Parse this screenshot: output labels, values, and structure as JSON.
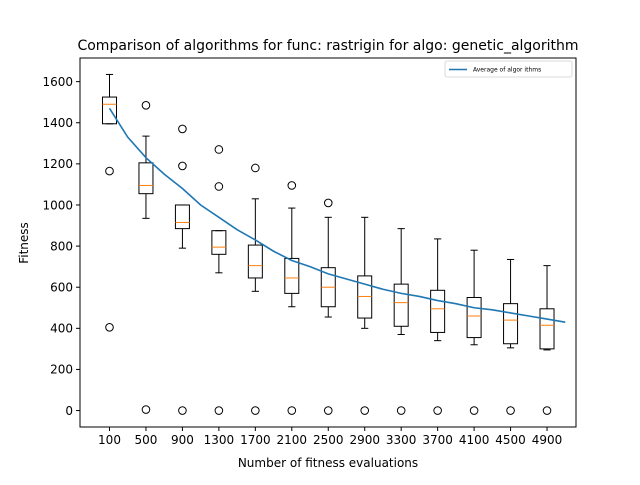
{
  "chart_data": {
    "type": "box",
    "title": "Comparison of algorithms for func: rastrigin for algo: genetic_algorithm",
    "xlabel": "Number of fitness evaluations",
    "ylabel": "Fitness",
    "ylim": [
      -80,
      1715
    ],
    "yticks": [
      0,
      200,
      400,
      600,
      800,
      1000,
      1200,
      1400,
      1600
    ],
    "grid": false,
    "legend_position": "top-right",
    "categories": [
      "100",
      "500",
      "900",
      "1300",
      "1700",
      "2100",
      "2500",
      "2900",
      "3300",
      "3700",
      "4100",
      "4500",
      "4900"
    ],
    "boxes": [
      {
        "whisker_low": 1395,
        "q1": 1395,
        "median": 1490,
        "q3": 1525,
        "whisker_high": 1635,
        "fliers": [
          1165,
          405
        ]
      },
      {
        "whisker_low": 935,
        "q1": 1055,
        "median": 1095,
        "q3": 1205,
        "whisker_high": 1335,
        "fliers": [
          1485,
          5
        ]
      },
      {
        "whisker_low": 790,
        "q1": 885,
        "median": 915,
        "q3": 1000,
        "whisker_high": 1000,
        "fliers": [
          1370,
          1190,
          0
        ]
      },
      {
        "whisker_low": 670,
        "q1": 760,
        "median": 795,
        "q3": 875,
        "whisker_high": 875,
        "fliers": [
          1270,
          1090,
          0
        ]
      },
      {
        "whisker_low": 580,
        "q1": 645,
        "median": 705,
        "q3": 805,
        "whisker_high": 1030,
        "fliers": [
          1180,
          0
        ]
      },
      {
        "whisker_low": 505,
        "q1": 570,
        "median": 645,
        "q3": 740,
        "whisker_high": 985,
        "fliers": [
          1095,
          0
        ]
      },
      {
        "whisker_low": 455,
        "q1": 505,
        "median": 600,
        "q3": 695,
        "whisker_high": 940,
        "fliers": [
          1010,
          0
        ]
      },
      {
        "whisker_low": 400,
        "q1": 450,
        "median": 555,
        "q3": 655,
        "whisker_high": 940,
        "fliers": [
          0
        ]
      },
      {
        "whisker_low": 370,
        "q1": 410,
        "median": 525,
        "q3": 615,
        "whisker_high": 885,
        "fliers": [
          0
        ]
      },
      {
        "whisker_low": 340,
        "q1": 380,
        "median": 495,
        "q3": 585,
        "whisker_high": 835,
        "fliers": [
          0
        ]
      },
      {
        "whisker_low": 320,
        "q1": 355,
        "median": 460,
        "q3": 550,
        "whisker_high": 780,
        "fliers": [
          0
        ]
      },
      {
        "whisker_low": 305,
        "q1": 325,
        "median": 440,
        "q3": 520,
        "whisker_high": 735,
        "fliers": [
          0
        ]
      },
      {
        "whisker_low": 295,
        "q1": 300,
        "median": 415,
        "q3": 495,
        "whisker_high": 705,
        "fliers": [
          0
        ]
      }
    ],
    "series": [
      {
        "name": "Average of algor ithms",
        "type": "line",
        "color": "#1f77b4",
        "x": [
          100,
          300,
          500,
          700,
          900,
          1100,
          1300,
          1500,
          1700,
          1900,
          2100,
          2300,
          2500,
          2700,
          2900,
          3100,
          3300,
          3500,
          3700,
          3900,
          4100,
          4300,
          4500,
          4700,
          4900,
          5100
        ],
        "values": [
          1470,
          1330,
          1230,
          1150,
          1080,
          1000,
          940,
          880,
          830,
          775,
          730,
          700,
          665,
          640,
          615,
          590,
          570,
          555,
          535,
          520,
          500,
          490,
          475,
          460,
          445,
          430
        ]
      }
    ],
    "colors": {
      "box": "#000000",
      "median": "#ff7f0e",
      "line": "#1f77b4"
    }
  }
}
